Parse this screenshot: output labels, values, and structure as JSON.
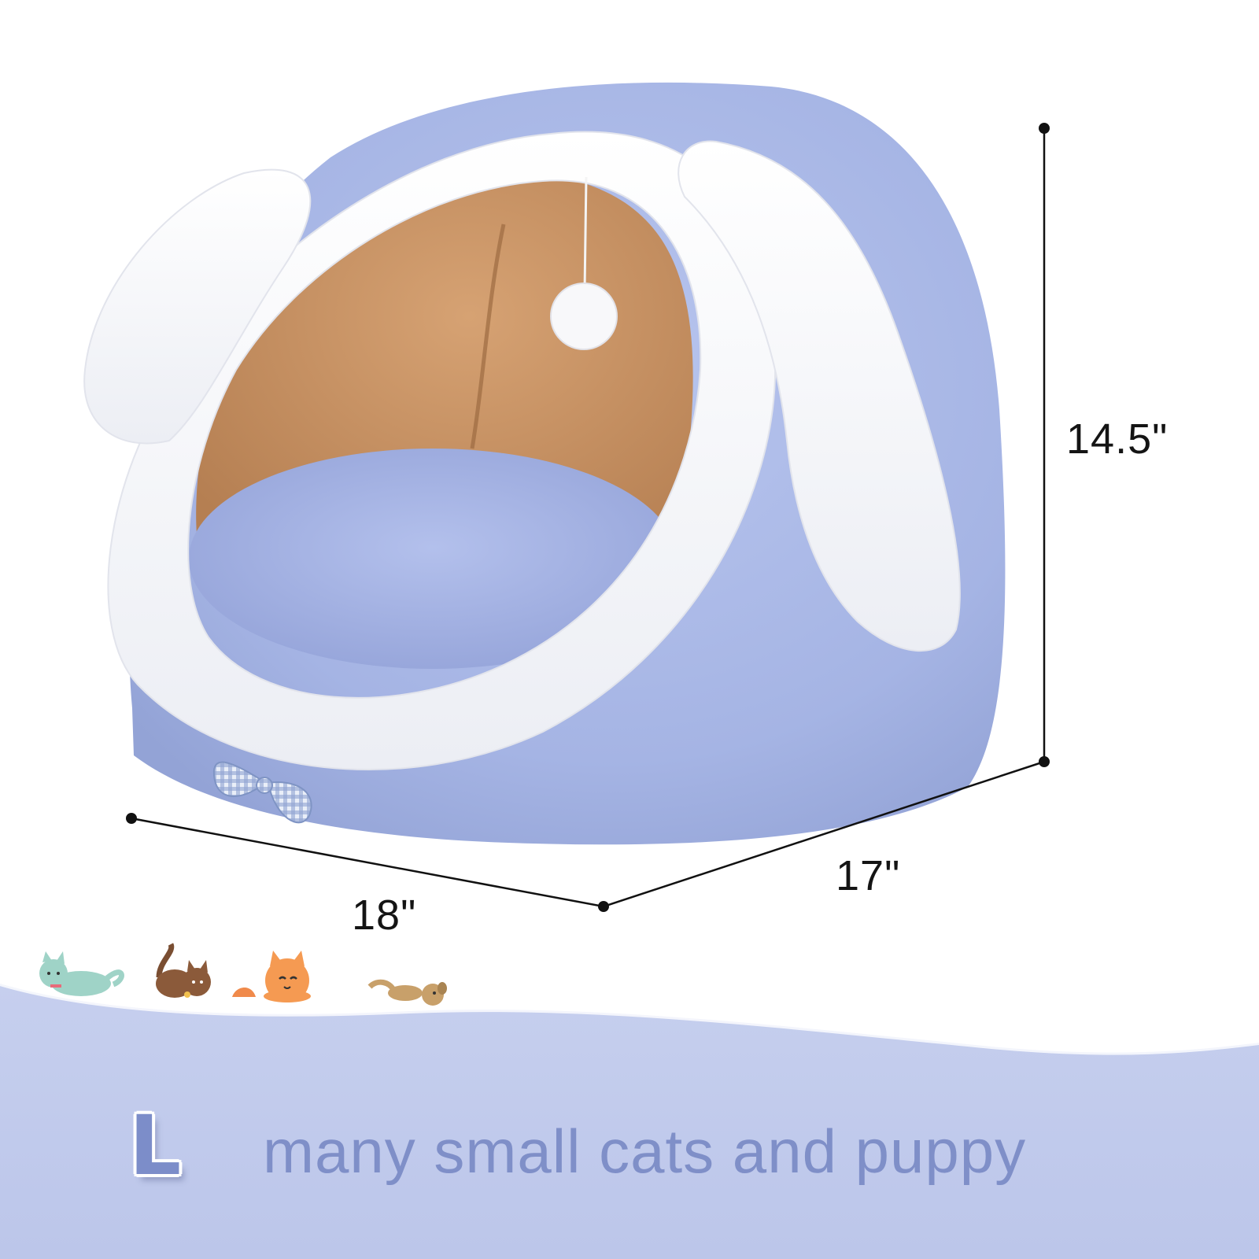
{
  "dimensions": {
    "height": "14.5\"",
    "depth": "17\"",
    "width": "18\""
  },
  "size_label": "L",
  "caption": "many small cats and puppy",
  "colors": {
    "bed_blue": "#a9b8e6",
    "ear_white": "#ffffff",
    "interior_tan": "#c48f5e",
    "wave_blue": "#c9d1ee",
    "caption_blue": "#7f8fc8"
  },
  "icons": [
    "cat-icon",
    "cat-icon",
    "cat-icon",
    "dog-icon"
  ]
}
